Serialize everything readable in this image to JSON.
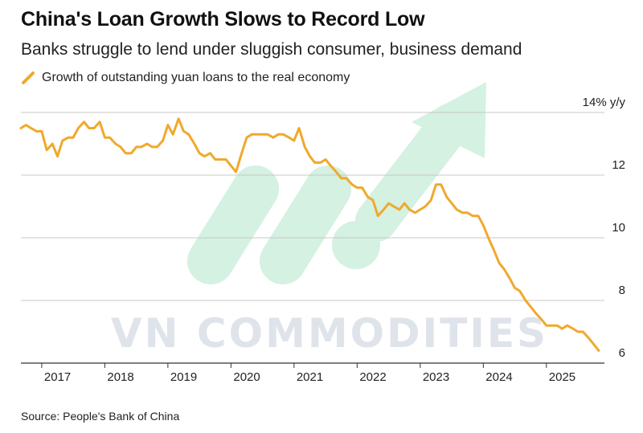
{
  "title": "China's Loan Growth Slows to Record Low",
  "subtitle": "Banks struggle to lend under sluggish consumer, business demand",
  "source": "Source: People's Bank of China",
  "watermark": "VN COMMODITIES",
  "colors": {
    "series": "#f0a92c",
    "grid": "#c8c8c8",
    "watermark": "#dfe3ea",
    "watermark_arrow": "#d4f1e1"
  },
  "chart_data": {
    "type": "line",
    "title": "China's Loan Growth Slows to Record Low",
    "subtitle": "Banks struggle to lend under sluggish consumer, business demand",
    "xlabel": "",
    "ylabel": "",
    "y_unit_label": "14% y/y",
    "ylim": [
      6,
      14
    ],
    "xlim": [
      2016.67,
      2025.92
    ],
    "grid": true,
    "legend": "top-left",
    "x_ticks": [
      {
        "value": 2017,
        "label": "2017"
      },
      {
        "value": 2018,
        "label": "2018"
      },
      {
        "value": 2019,
        "label": "2019"
      },
      {
        "value": 2020,
        "label": "2020"
      },
      {
        "value": 2021,
        "label": "2021"
      },
      {
        "value": 2022,
        "label": "2022"
      },
      {
        "value": 2023,
        "label": "2023"
      },
      {
        "value": 2024,
        "label": "2024"
      },
      {
        "value": 2025,
        "label": "2025"
      }
    ],
    "y_ticks": [
      {
        "value": 14,
        "label": "14% y/y"
      },
      {
        "value": 12,
        "label": "12"
      },
      {
        "value": 10,
        "label": "10"
      },
      {
        "value": 8,
        "label": "8"
      },
      {
        "value": 6,
        "label": "6"
      }
    ],
    "series": [
      {
        "name": "Growth of outstanding yuan loans to the real economy",
        "x": [
          2016.67,
          2016.75,
          2016.83,
          2016.92,
          2017.0,
          2017.08,
          2017.17,
          2017.25,
          2017.33,
          2017.42,
          2017.5,
          2017.58,
          2017.67,
          2017.75,
          2017.83,
          2017.92,
          2018.0,
          2018.08,
          2018.17,
          2018.25,
          2018.33,
          2018.42,
          2018.5,
          2018.58,
          2018.67,
          2018.75,
          2018.83,
          2018.92,
          2019.0,
          2019.08,
          2019.17,
          2019.25,
          2019.33,
          2019.42,
          2019.5,
          2019.58,
          2019.67,
          2019.75,
          2019.83,
          2019.92,
          2020.0,
          2020.08,
          2020.17,
          2020.25,
          2020.33,
          2020.42,
          2020.5,
          2020.58,
          2020.67,
          2020.75,
          2020.83,
          2020.92,
          2021.0,
          2021.08,
          2021.17,
          2021.25,
          2021.33,
          2021.42,
          2021.5,
          2021.58,
          2021.67,
          2021.75,
          2021.83,
          2021.92,
          2022.0,
          2022.08,
          2022.17,
          2022.25,
          2022.33,
          2022.42,
          2022.5,
          2022.58,
          2022.67,
          2022.75,
          2022.83,
          2022.92,
          2023.0,
          2023.08,
          2023.17,
          2023.25,
          2023.33,
          2023.42,
          2023.5,
          2023.58,
          2023.67,
          2023.75,
          2023.83,
          2023.92,
          2024.0,
          2024.08,
          2024.17,
          2024.25,
          2024.33,
          2024.42,
          2024.5,
          2024.58,
          2024.67,
          2024.75,
          2024.83,
          2024.92,
          2025.0,
          2025.08,
          2025.17,
          2025.25,
          2025.33,
          2025.42,
          2025.5,
          2025.58,
          2025.67,
          2025.75,
          2025.83
        ],
        "y": [
          13.5,
          13.6,
          13.5,
          13.4,
          13.4,
          12.8,
          13.0,
          12.6,
          13.1,
          13.2,
          13.2,
          13.5,
          13.7,
          13.5,
          13.5,
          13.7,
          13.2,
          13.2,
          13.0,
          12.9,
          12.7,
          12.7,
          12.9,
          12.9,
          13.0,
          12.9,
          12.9,
          13.1,
          13.6,
          13.3,
          13.8,
          13.4,
          13.3,
          13.0,
          12.7,
          12.6,
          12.7,
          12.5,
          12.5,
          12.5,
          12.3,
          12.1,
          12.7,
          13.2,
          13.3,
          13.3,
          13.3,
          13.3,
          13.2,
          13.3,
          13.3,
          13.2,
          13.1,
          13.5,
          12.9,
          12.6,
          12.4,
          12.4,
          12.5,
          12.3,
          12.1,
          11.9,
          11.9,
          11.7,
          11.6,
          11.6,
          11.3,
          11.2,
          10.7,
          10.9,
          11.1,
          11.0,
          10.9,
          11.1,
          10.9,
          10.8,
          10.9,
          11.0,
          11.2,
          11.7,
          11.7,
          11.3,
          11.1,
          10.9,
          10.8,
          10.8,
          10.7,
          10.7,
          10.4,
          10.0,
          9.6,
          9.2,
          9.0,
          8.7,
          8.4,
          8.3,
          8.0,
          7.8,
          7.6,
          7.4,
          7.2,
          7.2,
          7.2,
          7.1,
          7.2,
          7.1,
          7.0,
          7.0,
          6.8,
          6.6,
          6.4
        ]
      }
    ]
  }
}
